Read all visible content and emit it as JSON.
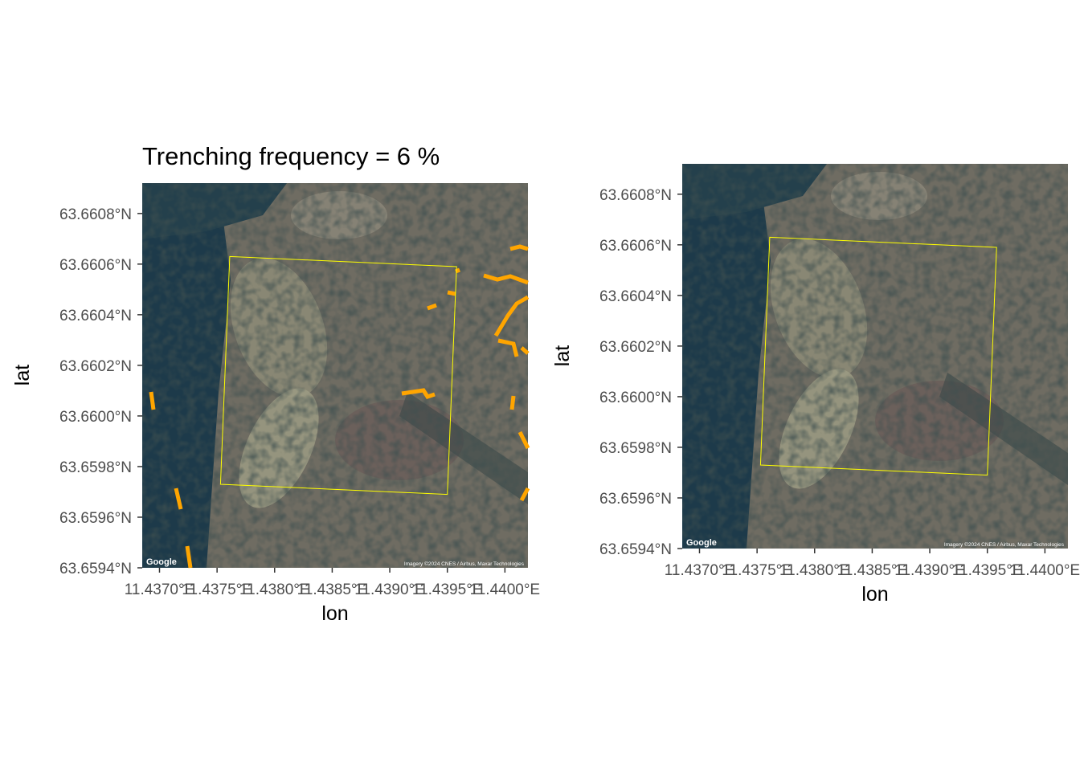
{
  "panels": [
    {
      "title": "Trenching frequency =  6 %",
      "xlabel": "lon",
      "ylabel": "lat",
      "x_ticks": [
        "11.4370°E",
        "11.4375°E",
        "11.4380°E",
        "11.4385°E",
        "11.4390°E",
        "11.4395°E",
        "11.4400°E"
      ],
      "y_ticks": [
        "63.6608°N",
        "63.6606°N",
        "63.6604°N",
        "63.6602°N",
        "63.6600°N",
        "63.6598°N",
        "63.6596°N",
        "63.6594°N"
      ],
      "attribution": "Imagery ©2024 CNES / Airbus, Maxar Technologies",
      "basemap_logo": "Google",
      "has_trench_overlay": true
    },
    {
      "title": "",
      "xlabel": "lon",
      "ylabel": "lat",
      "x_ticks": [
        "11.4370°E",
        "11.4375°E",
        "11.4380°E",
        "11.4385°E",
        "11.4390°E",
        "11.4395°E",
        "11.4400°E"
      ],
      "y_ticks": [
        "63.6608°N",
        "63.6606°N",
        "63.6604°N",
        "63.6602°N",
        "63.6600°N",
        "63.6598°N",
        "63.6596°N",
        "63.6594°N"
      ],
      "attribution": "Imagery ©2024 CNES / Airbus, Maxar Technologies",
      "basemap_logo": "Google",
      "has_trench_overlay": false
    }
  ],
  "colors": {
    "trench": "#ffa500",
    "plot_boundary": "#ffff00",
    "axis_text": "#4d4d4d",
    "title_text": "#000000",
    "forest_dark": "#1d3a4a",
    "clearing": "#7a7566",
    "meadow": "#9c9b84"
  },
  "map_data": {
    "lon_range": [
      11.43685,
      11.4402
    ],
    "lat_range": [
      63.6594,
      63.66092
    ],
    "plot_boundary": [
      [
        11.43761,
        63.66063
      ],
      [
        11.43958,
        63.66059
      ],
      [
        11.4395,
        63.65969
      ],
      [
        11.43753,
        63.65973
      ]
    ]
  }
}
